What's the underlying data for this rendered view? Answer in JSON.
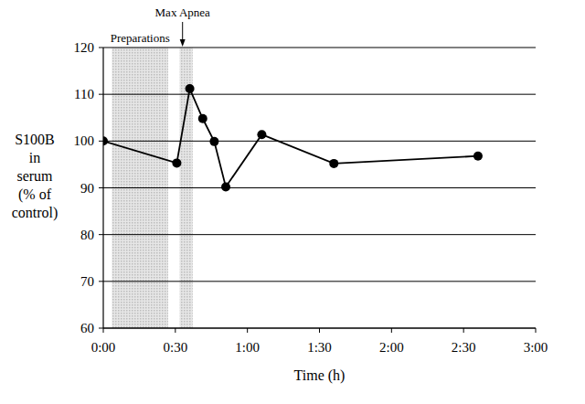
{
  "chart_data": {
    "type": "line",
    "xlabel": "Time (h)",
    "ylabel": [
      "S100B",
      "in",
      "serum",
      "(% of",
      "control)"
    ],
    "x": [
      0,
      0.51,
      0.6,
      0.69,
      0.77,
      0.85,
      1.1,
      1.6,
      2.6
    ],
    "series": [
      {
        "name": "S100B",
        "color": "#000000",
        "marker": "circle",
        "line_style": "solid",
        "values": [
          100,
          95.3,
          111.2,
          104.8,
          99.9,
          90.2,
          101.4,
          95.2,
          96.8
        ]
      }
    ],
    "xlim": [
      0,
      3
    ],
    "xticks": [
      {
        "value": 0,
        "label": "0:00"
      },
      {
        "value": 0.5,
        "label": "0:30"
      },
      {
        "value": 1,
        "label": "1:00"
      },
      {
        "value": 1.5,
        "label": "1:30"
      },
      {
        "value": 2,
        "label": "2:00"
      },
      {
        "value": 2.5,
        "label": "2:30"
      },
      {
        "value": 3,
        "label": "3:00"
      }
    ],
    "ylim": [
      60,
      120
    ],
    "yticks": [
      60,
      70,
      80,
      90,
      100,
      110,
      120
    ],
    "grid": "y",
    "annotations": [
      {
        "text": "Preparations",
        "x": [
          0.06,
          0.45
        ]
      },
      {
        "text": "Max Apnea",
        "x": [
          0.53,
          0.62
        ],
        "arrow_x": 0.55
      }
    ]
  }
}
